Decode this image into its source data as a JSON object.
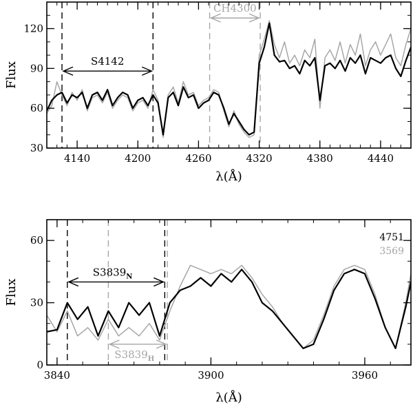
{
  "chart_data": [
    {
      "type": "line",
      "xlabel": "λ(Å)",
      "ylabel": "Flux",
      "xlim": [
        4110,
        4470
      ],
      "ylim": [
        30,
        140
      ],
      "xticks": [
        4140,
        4200,
        4260,
        4320,
        4380,
        4440
      ],
      "yticks": [
        30,
        60,
        90,
        120
      ],
      "series": [
        {
          "color": "#000000",
          "x": [
            4110,
            4115,
            4120,
            4125,
            4130,
            4135,
            4140,
            4145,
            4150,
            4155,
            4160,
            4165,
            4170,
            4175,
            4180,
            4185,
            4190,
            4195,
            4200,
            4205,
            4210,
            4215,
            4220,
            4225,
            4230,
            4235,
            4240,
            4245,
            4250,
            4255,
            4260,
            4265,
            4270,
            4275,
            4280,
            4285,
            4290,
            4295,
            4300,
            4305,
            4310,
            4315,
            4320,
            4325,
            4330,
            4335,
            4340,
            4345,
            4350,
            4355,
            4360,
            4365,
            4370,
            4375,
            4380,
            4385,
            4390,
            4395,
            4400,
            4405,
            4410,
            4415,
            4420,
            4425,
            4430,
            4435,
            4440,
            4445,
            4450,
            4455,
            4460,
            4465,
            4470
          ],
          "values": [
            58,
            66,
            70,
            72,
            64,
            70,
            68,
            72,
            60,
            70,
            72,
            66,
            74,
            62,
            68,
            72,
            70,
            60,
            66,
            68,
            62,
            70,
            64,
            40,
            68,
            72,
            62,
            76,
            68,
            70,
            60,
            64,
            66,
            72,
            70,
            60,
            48,
            56,
            50,
            44,
            40,
            42,
            94,
            106,
            124,
            100,
            95,
            96,
            90,
            92,
            86,
            96,
            92,
            98,
            66,
            92,
            94,
            90,
            96,
            88,
            98,
            94,
            100,
            86,
            98,
            96,
            94,
            98,
            100,
            90,
            84,
            96,
            106
          ]
        },
        {
          "color": "#a6a6a6",
          "x": [
            4110,
            4115,
            4120,
            4125,
            4130,
            4135,
            4140,
            4145,
            4150,
            4155,
            4160,
            4165,
            4170,
            4175,
            4180,
            4185,
            4190,
            4195,
            4200,
            4205,
            4210,
            4215,
            4220,
            4225,
            4230,
            4235,
            4240,
            4245,
            4250,
            4255,
            4260,
            4265,
            4270,
            4275,
            4280,
            4285,
            4290,
            4295,
            4300,
            4305,
            4310,
            4315,
            4320,
            4325,
            4330,
            4335,
            4340,
            4345,
            4350,
            4355,
            4360,
            4365,
            4370,
            4375,
            4380,
            4385,
            4390,
            4395,
            4400,
            4405,
            4410,
            4415,
            4420,
            4425,
            4430,
            4435,
            4440,
            4445,
            4450,
            4455,
            4460,
            4465,
            4470
          ],
          "values": [
            56,
            62,
            80,
            70,
            62,
            72,
            66,
            74,
            58,
            68,
            70,
            64,
            72,
            60,
            66,
            70,
            68,
            58,
            64,
            66,
            60,
            74,
            66,
            38,
            70,
            76,
            64,
            80,
            70,
            72,
            62,
            66,
            68,
            74,
            72,
            58,
            46,
            58,
            48,
            42,
            38,
            40,
            100,
            112,
            126,
            108,
            98,
            110,
            94,
            100,
            92,
            104,
            98,
            112,
            60,
            98,
            104,
            96,
            110,
            94,
            108,
            100,
            116,
            92,
            104,
            110,
            100,
            108,
            116,
            98,
            92,
            108,
            120
          ]
        }
      ],
      "annotations": [
        {
          "text": "S4142",
          "x1": 4125,
          "x2": 4215,
          "y": 88,
          "color": "#000000"
        },
        {
          "text": "CH4300",
          "x1": 4271,
          "x2": 4321,
          "y": 128,
          "color": "#a6a6a6"
        }
      ],
      "vlines": [
        {
          "x": 4125,
          "color": "#000000"
        },
        {
          "x": 4215,
          "color": "#000000"
        },
        {
          "x": 4271,
          "color": "#a6a6a6"
        },
        {
          "x": 4321,
          "color": "#a6a6a6"
        }
      ]
    },
    {
      "type": "line",
      "xlabel": "λ(Å)",
      "ylabel": "Flux",
      "xlim": [
        3836,
        3978
      ],
      "ylim": [
        0,
        70
      ],
      "xticks": [
        3840,
        3900,
        3960
      ],
      "yticks": [
        0,
        30,
        60
      ],
      "series": [
        {
          "name": "4751",
          "color": "#000000",
          "x": [
            3836,
            3840,
            3844,
            3848,
            3852,
            3856,
            3860,
            3864,
            3868,
            3872,
            3876,
            3880,
            3884,
            3888,
            3892,
            3896,
            3900,
            3904,
            3908,
            3912,
            3916,
            3920,
            3924,
            3928,
            3932,
            3936,
            3940,
            3944,
            3948,
            3952,
            3956,
            3960,
            3964,
            3968,
            3972,
            3976,
            3978
          ],
          "values": [
            16,
            17,
            30,
            22,
            28,
            14,
            26,
            18,
            30,
            24,
            30,
            14,
            30,
            36,
            38,
            42,
            38,
            44,
            40,
            46,
            40,
            30,
            26,
            20,
            14,
            8,
            10,
            22,
            36,
            44,
            46,
            44,
            32,
            18,
            8,
            28,
            40
          ]
        },
        {
          "name": "3569",
          "color": "#a6a6a6",
          "x": [
            3836,
            3840,
            3844,
            3848,
            3852,
            3856,
            3860,
            3864,
            3868,
            3872,
            3876,
            3880,
            3884,
            3888,
            3892,
            3896,
            3900,
            3904,
            3908,
            3912,
            3916,
            3920,
            3924,
            3928,
            3932,
            3936,
            3940,
            3944,
            3948,
            3952,
            3956,
            3960,
            3964,
            3968,
            3972,
            3976,
            3978
          ],
          "values": [
            24,
            16,
            26,
            14,
            18,
            12,
            22,
            14,
            18,
            14,
            20,
            12,
            26,
            38,
            48,
            46,
            44,
            46,
            44,
            48,
            42,
            34,
            28,
            20,
            14,
            8,
            12,
            24,
            38,
            46,
            48,
            46,
            34,
            18,
            8,
            30,
            44
          ]
        }
      ],
      "annotations": [
        {
          "text": "S3839",
          "sub": "N",
          "x1": 3844,
          "x2": 3882,
          "y": 40,
          "color": "#000000"
        },
        {
          "text": "S3839",
          "sub": "H",
          "x1": 3860,
          "x2": 3883,
          "y": 10,
          "color": "#a6a6a6"
        }
      ],
      "vlines": [
        {
          "x": 3844,
          "color": "#000000"
        },
        {
          "x": 3882,
          "color": "#000000"
        },
        {
          "x": 3860,
          "color": "#a6a6a6"
        },
        {
          "x": 3883,
          "color": "#a6a6a6"
        }
      ]
    }
  ]
}
